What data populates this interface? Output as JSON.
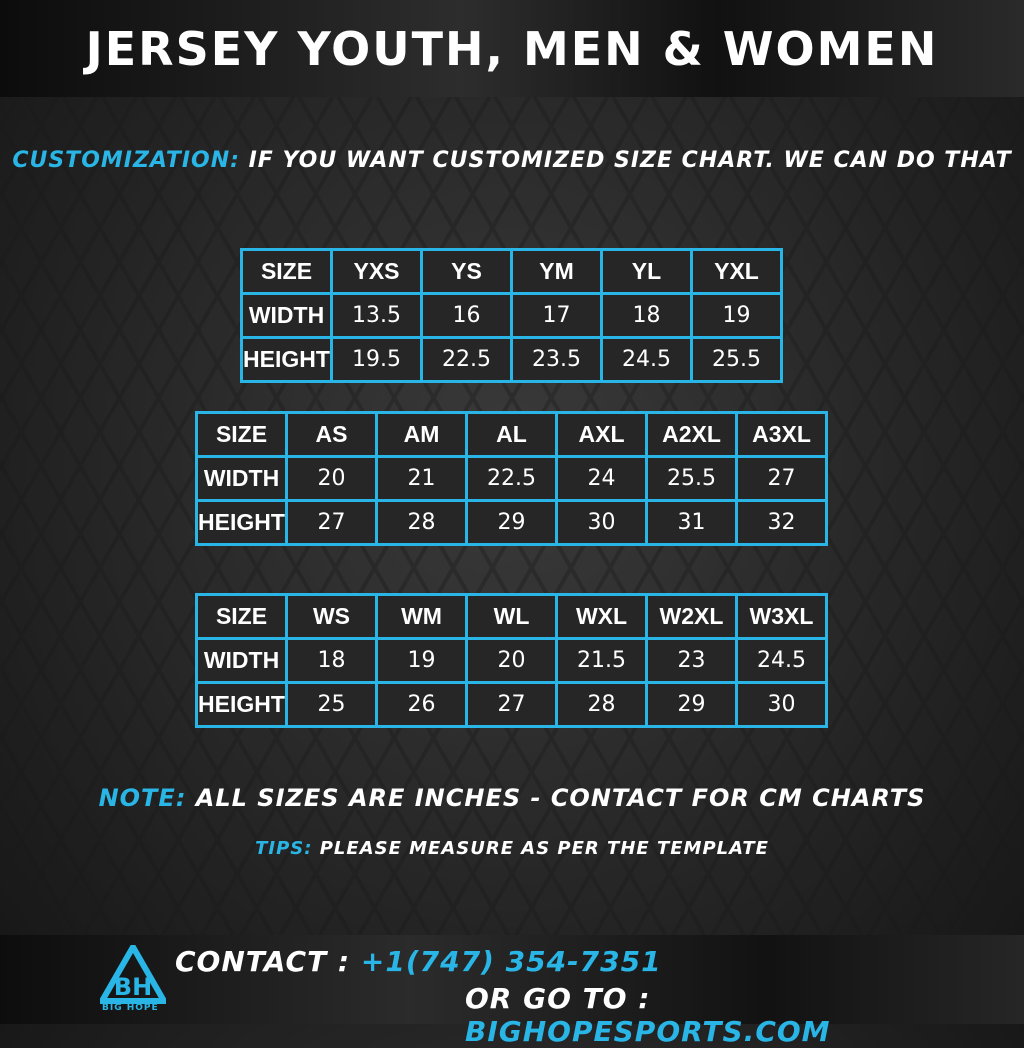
{
  "title": "Jersey Youth, Men & Women",
  "customization": {
    "label": "Customization:",
    "text": "If you want customized size chart. We can do that"
  },
  "tables": [
    {
      "rows": [
        [
          "SIZE",
          "YXS",
          "YS",
          "YM",
          "YL",
          "YXL"
        ],
        [
          "WIDTH",
          "13.5",
          "16",
          "17",
          "18",
          "19"
        ],
        [
          "HEIGHT",
          "19.5",
          "22.5",
          "23.5",
          "24.5",
          "25.5"
        ]
      ]
    },
    {
      "rows": [
        [
          "SIZE",
          "AS",
          "AM",
          "AL",
          "AXL",
          "A2XL",
          "A3XL"
        ],
        [
          "WIDTH",
          "20",
          "21",
          "22.5",
          "24",
          "25.5",
          "27"
        ],
        [
          "HEIGHT",
          "27",
          "28",
          "29",
          "30",
          "31",
          "32"
        ]
      ]
    },
    {
      "rows": [
        [
          "SIZE",
          "WS",
          "WM",
          "WL",
          "WXL",
          "W2XL",
          "W3XL"
        ],
        [
          "WIDTH",
          "18",
          "19",
          "20",
          "21.5",
          "23",
          "24.5"
        ],
        [
          "HEIGHT",
          "25",
          "26",
          "27",
          "28",
          "29",
          "30"
        ]
      ]
    }
  ],
  "note": {
    "label": "Note:",
    "text": "All sizes are inches - contact for cm charts"
  },
  "tips": {
    "label": "Tips:",
    "text": "Please measure as per the template"
  },
  "footer": {
    "contact_label": "Contact :",
    "phone": "+1(747) 354-7351",
    "goto_label": "Or go to :",
    "website": "bighopesports.com",
    "logo_text": "BIG HOPE"
  },
  "colors": {
    "accent": "#29b6e6",
    "cell_bg": "#262626",
    "text": "#ffffff"
  }
}
